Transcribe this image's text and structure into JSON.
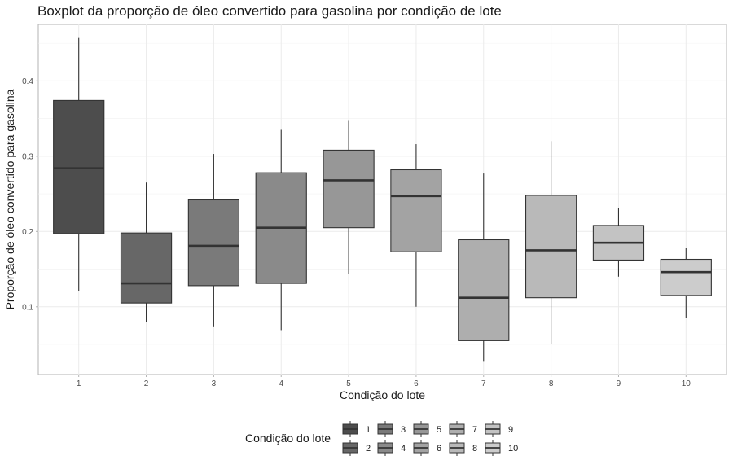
{
  "chart_data": {
    "type": "boxplot",
    "title": "Boxplot da proporção de óleo convertido para gasolina por condição de lote",
    "xlabel": "Condição do lote",
    "ylabel": "Proporção de óleo convertido para gasolina",
    "categories": [
      "1",
      "2",
      "3",
      "4",
      "5",
      "6",
      "7",
      "8",
      "9",
      "10"
    ],
    "ylim": [
      0.01,
      0.475
    ],
    "yticks": [
      0.1,
      0.2,
      0.3,
      0.4
    ],
    "ytick_labels": [
      "0.1",
      "0.2",
      "0.3",
      "0.4"
    ],
    "grid": true,
    "legend": {
      "title": "Condição do lote",
      "position": "bottom",
      "entries": [
        "1",
        "2",
        "3",
        "4",
        "5",
        "6",
        "7",
        "8",
        "9",
        "10"
      ]
    },
    "boxes": [
      {
        "category": "1",
        "min": 0.121,
        "q1": 0.197,
        "median": 0.284,
        "q3": 0.374,
        "max": 0.457,
        "fill": "#4d4d4d"
      },
      {
        "category": "2",
        "min": 0.08,
        "q1": 0.105,
        "median": 0.131,
        "q3": 0.198,
        "max": 0.265,
        "fill": "#676767"
      },
      {
        "category": "3",
        "min": 0.074,
        "q1": 0.128,
        "median": 0.181,
        "q3": 0.242,
        "max": 0.303,
        "fill": "#7a7a7a"
      },
      {
        "category": "4",
        "min": 0.069,
        "q1": 0.131,
        "median": 0.205,
        "q3": 0.278,
        "max": 0.335,
        "fill": "#8a8a8a"
      },
      {
        "category": "5",
        "min": 0.144,
        "q1": 0.205,
        "median": 0.268,
        "q3": 0.308,
        "max": 0.348,
        "fill": "#979797"
      },
      {
        "category": "6",
        "min": 0.1,
        "q1": 0.173,
        "median": 0.247,
        "q3": 0.282,
        "max": 0.316,
        "fill": "#a3a3a3"
      },
      {
        "category": "7",
        "min": 0.028,
        "q1": 0.055,
        "median": 0.112,
        "q3": 0.189,
        "max": 0.277,
        "fill": "#aeaeae"
      },
      {
        "category": "8",
        "min": 0.05,
        "q1": 0.112,
        "median": 0.175,
        "q3": 0.248,
        "max": 0.32,
        "fill": "#b9b9b9"
      },
      {
        "category": "9",
        "min": 0.14,
        "q1": 0.162,
        "median": 0.185,
        "q3": 0.208,
        "max": 0.231,
        "fill": "#c3c3c3"
      },
      {
        "category": "10",
        "min": 0.085,
        "q1": 0.115,
        "median": 0.146,
        "q3": 0.163,
        "max": 0.178,
        "fill": "#cccccc"
      }
    ]
  }
}
